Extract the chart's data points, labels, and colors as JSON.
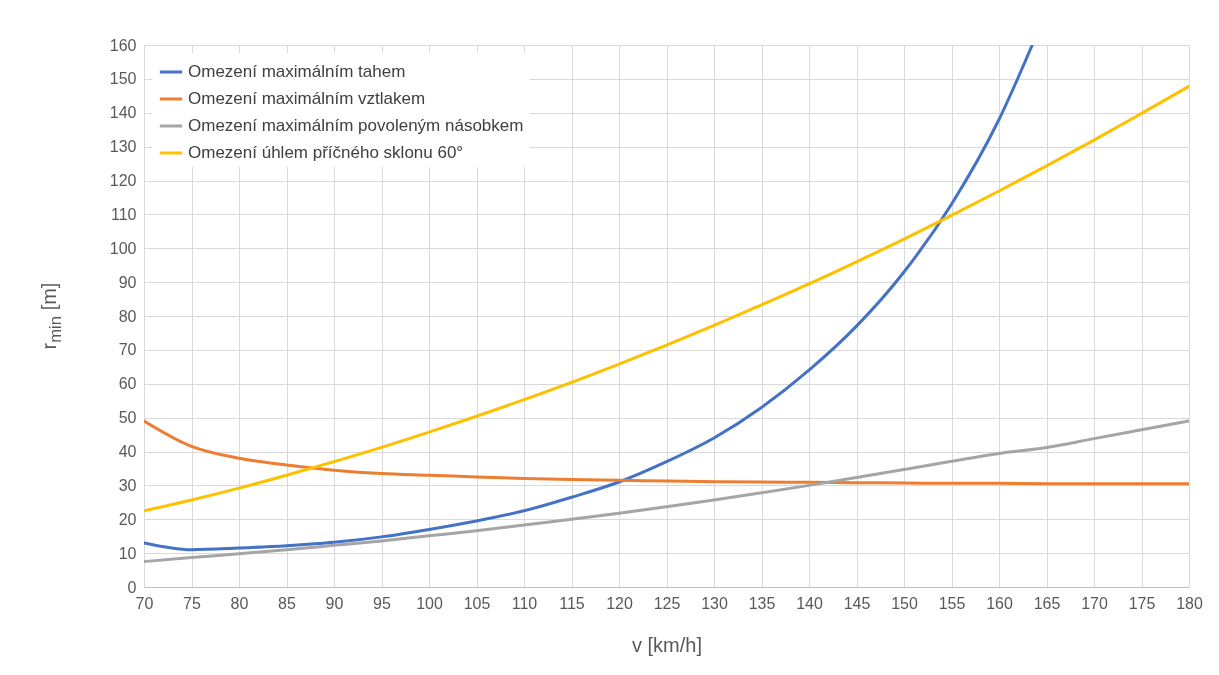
{
  "chart_data": {
    "type": "line",
    "xlabel": "v [km/h]",
    "ylabel": "r$_{min}$ [m]",
    "x": [
      70,
      75,
      80,
      85,
      90,
      95,
      100,
      105,
      110,
      115,
      120,
      125,
      130,
      135,
      140,
      145,
      150,
      155,
      160,
      165,
      170,
      175,
      180
    ],
    "xlim": [
      70,
      180
    ],
    "xticks": [
      70,
      75,
      80,
      85,
      90,
      95,
      100,
      105,
      110,
      115,
      120,
      125,
      130,
      135,
      140,
      145,
      150,
      155,
      160,
      165,
      170,
      175,
      180
    ],
    "ylim": [
      0,
      160
    ],
    "yticks": [
      0,
      10,
      20,
      30,
      40,
      50,
      60,
      70,
      80,
      90,
      100,
      110,
      120,
      130,
      140,
      150,
      160
    ],
    "grid": true,
    "legend": "top left",
    "marker": "none",
    "line_style": "solid",
    "series": [
      {
        "name": "Omezení maximálním tahem",
        "color": "#4472c4",
        "x": [
          70,
          75,
          80,
          85,
          90,
          95,
          100,
          105,
          110,
          115,
          120,
          125,
          130,
          135,
          140,
          145,
          150,
          155,
          160,
          163.5
        ],
        "values": [
          13,
          11,
          11.5,
          12.2,
          13.2,
          14.8,
          17,
          19.5,
          22.5,
          26.5,
          31,
          37,
          44,
          53,
          64,
          77,
          93,
          113,
          138,
          160
        ]
      },
      {
        "name": "Omezení maximálním vztlakem",
        "color": "#ed7d31",
        "values": [
          49,
          41.5,
          38,
          36,
          34.5,
          33.5,
          33,
          32.5,
          32,
          31.7,
          31.5,
          31.3,
          31.1,
          31,
          30.9,
          30.8,
          30.7,
          30.6,
          30.6,
          30.5,
          30.5,
          30.5,
          30.5
        ]
      },
      {
        "name": "Omezení maximálním povoleným násobkem",
        "color": "#a5a5a5",
        "values": [
          7.5,
          8.7,
          9.8,
          11,
          12.3,
          13.6,
          15.1,
          16.6,
          18.3,
          20,
          21.8,
          23.7,
          25.7,
          27.8,
          30,
          32.3,
          34.7,
          37.1,
          39.4,
          41.2,
          43.8,
          46.4,
          49
        ]
      },
      {
        "name": "Omezení úhlem příčného sklonu 60°",
        "color": "#ffc000",
        "values": [
          22.5,
          25.7,
          29.2,
          33,
          37,
          41.2,
          45.7,
          50.4,
          55.3,
          60.4,
          65.8,
          71.4,
          77.2,
          83.3,
          89.5,
          96,
          102.7,
          109.7,
          116.9,
          124.3,
          131.9,
          139.8,
          147.8
        ]
      }
    ]
  }
}
